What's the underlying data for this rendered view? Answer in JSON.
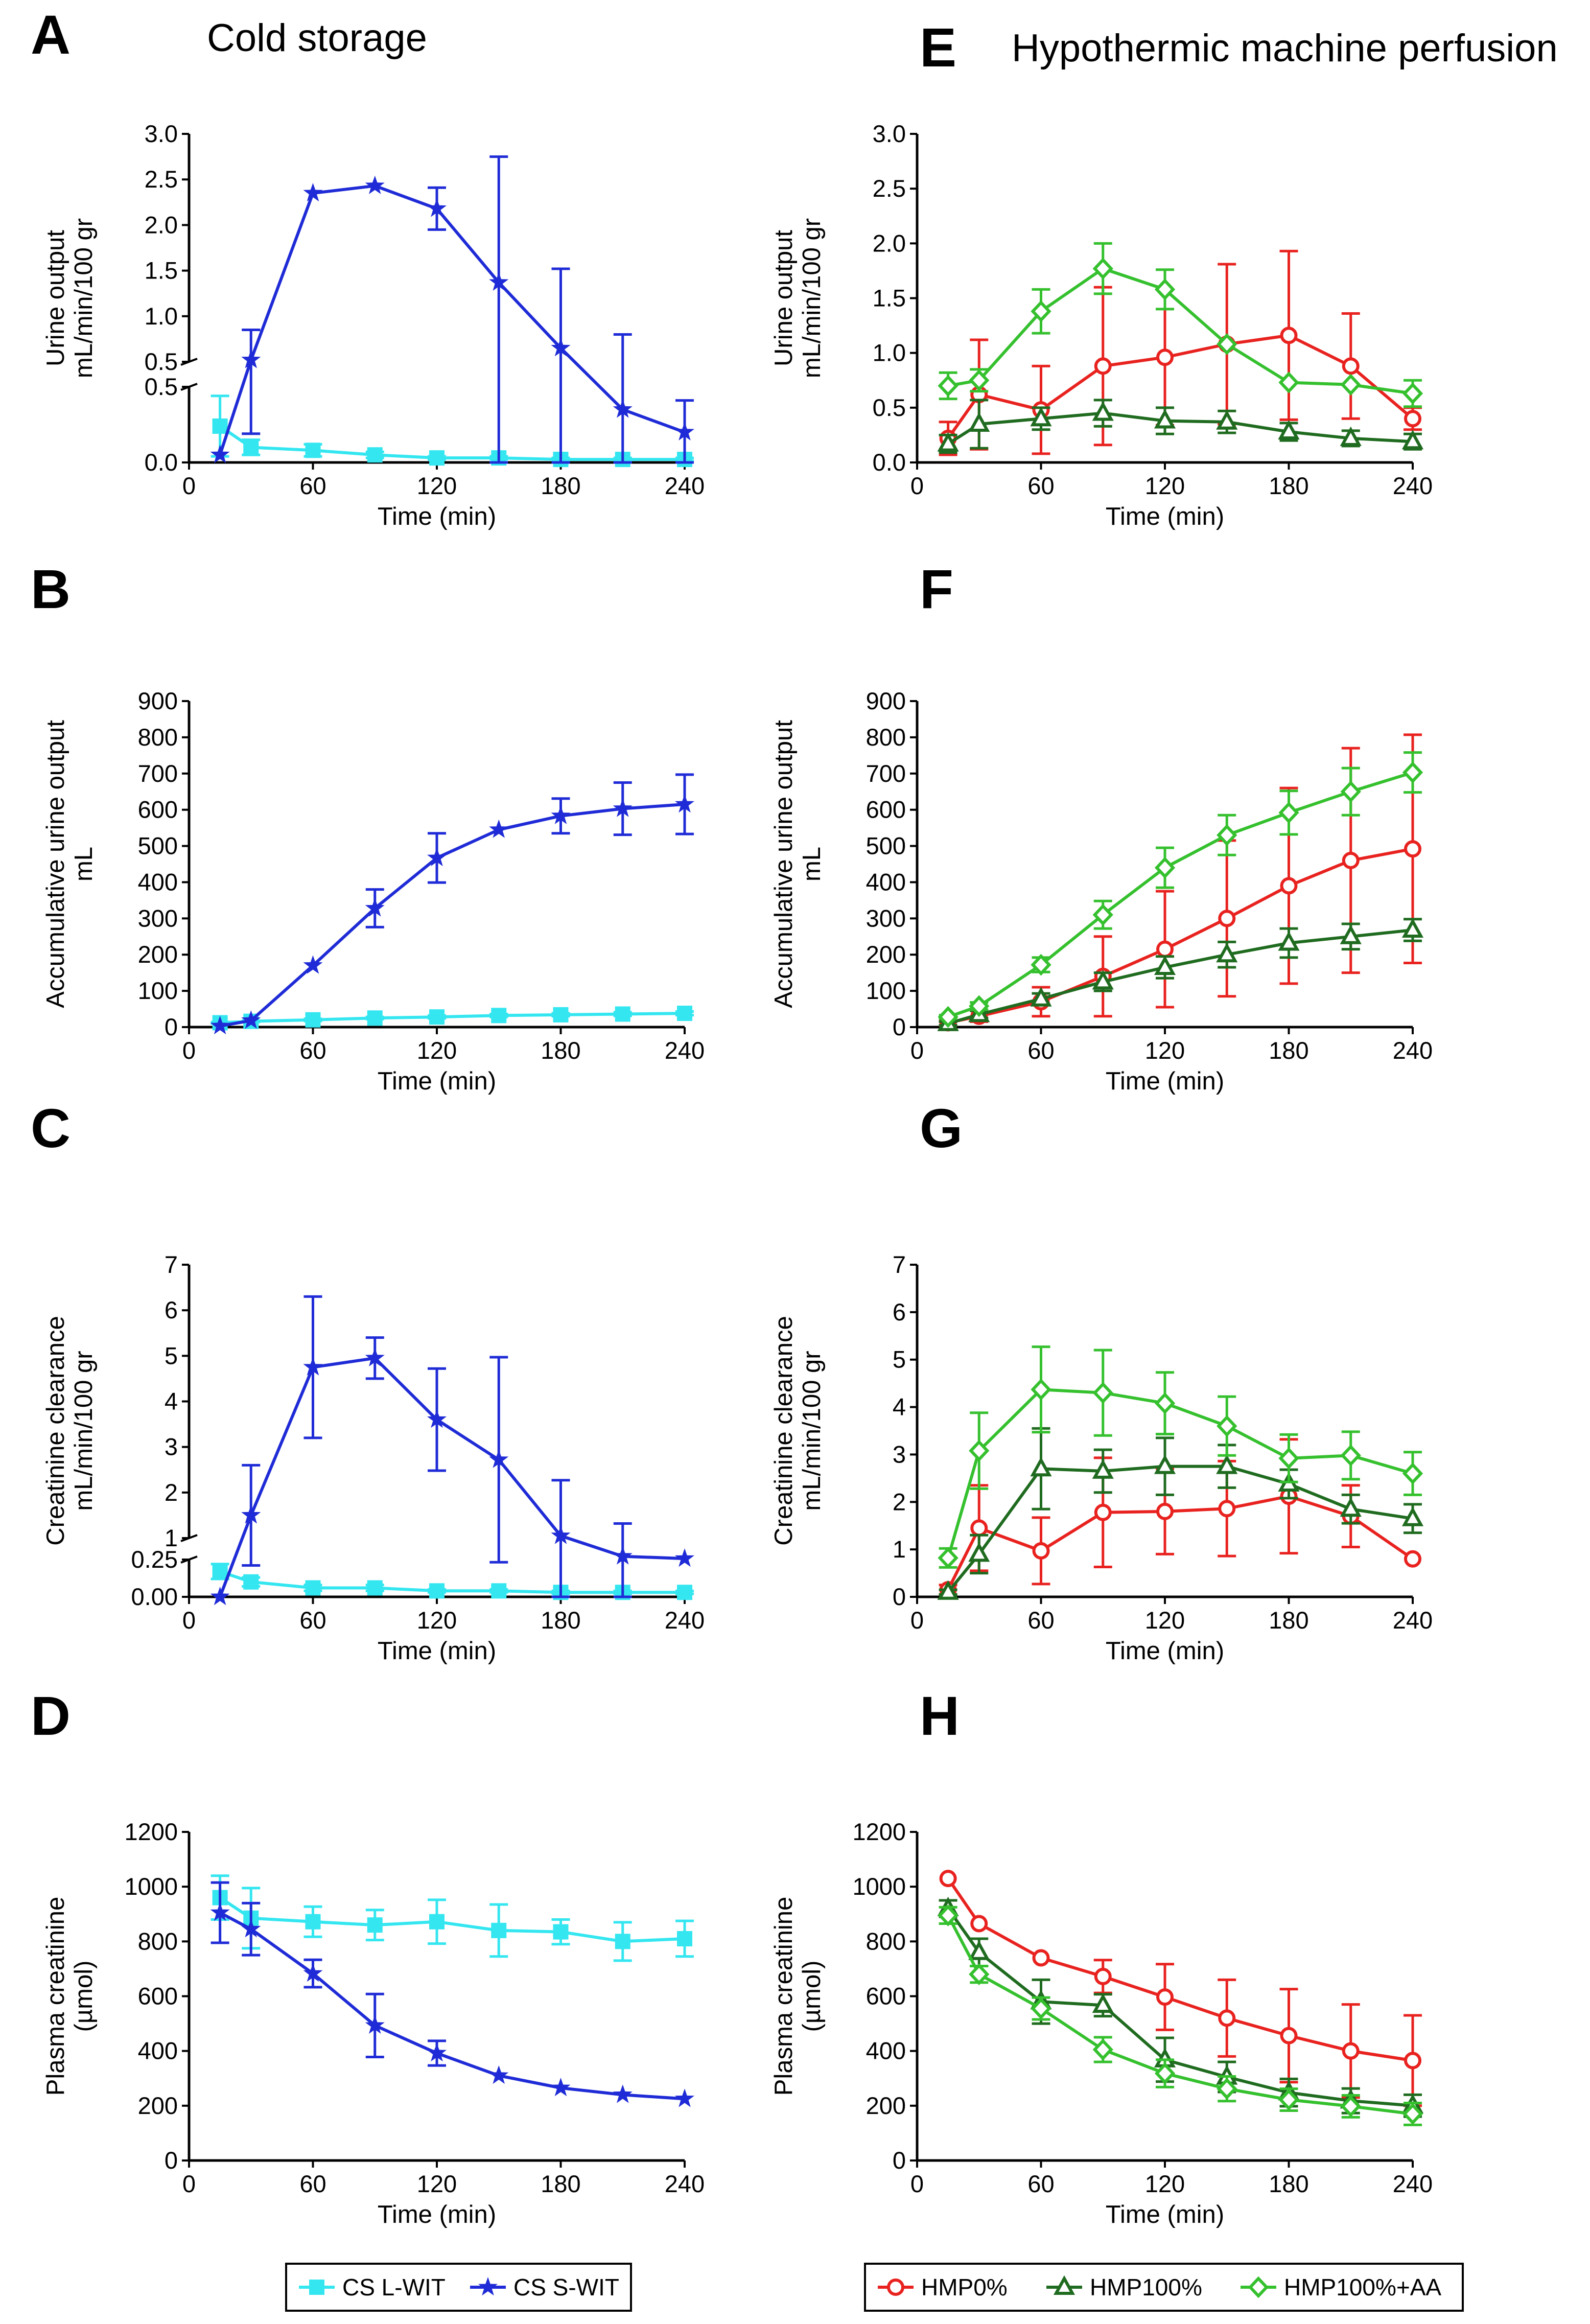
{
  "figure": {
    "heading_left": "Cold storage",
    "heading_right": "Hypothermic machine perfusion"
  },
  "colors": {
    "cs_lwit": "#33e6f0",
    "cs_swit": "#1f2bd6",
    "hmp0": "#e8221f",
    "hmp100": "#1f6b1f",
    "hmp100aa": "#35c02e",
    "axis": "#000000"
  },
  "legends": {
    "left": [
      {
        "label": "CS L-WIT",
        "color": "#33e6f0",
        "marker": "square"
      },
      {
        "label": "CS S-WIT",
        "color": "#1f2bd6",
        "marker": "star"
      }
    ],
    "right": [
      {
        "label": "HMP0%",
        "color": "#e8221f",
        "marker": "circle"
      },
      {
        "label": "HMP100%",
        "color": "#1f6b1f",
        "marker": "triangle"
      },
      {
        "label": "HMP100%+AA",
        "color": "#35c02e",
        "marker": "diamond"
      }
    ]
  },
  "chart_data": [
    {
      "id": "A",
      "type": "line",
      "letter": "A",
      "xlabel": "Time (min)",
      "ylabel": [
        "Urine output",
        "mL/min/100 gr"
      ],
      "xlim": [
        0,
        240
      ],
      "xticks": [
        0,
        60,
        120,
        180,
        240
      ],
      "ylim": [
        0,
        3.0
      ],
      "break": {
        "lower": [
          0,
          0.5
        ],
        "upper": [
          0.5,
          3.0
        ],
        "lower_ticks": [
          "0.0",
          "0.5"
        ],
        "upper_ticks": [
          "0.5",
          "1.0",
          "1.5",
          "2.0",
          "2.5",
          "3.0"
        ]
      },
      "series": [
        {
          "name": "CS L-WIT",
          "color": "#33e6f0",
          "marker": "square",
          "x": [
            15,
            30,
            60,
            90,
            120,
            150,
            180,
            210,
            240
          ],
          "y": [
            0.24,
            0.1,
            0.08,
            0.05,
            0.03,
            0.03,
            0.02,
            0.02,
            0.02
          ],
          "err": [
            0.2,
            0.05,
            0.04,
            0.02,
            0.01,
            0.01,
            0.01,
            0.01,
            0.01
          ]
        },
        {
          "name": "CS S-WIT",
          "color": "#1f2bd6",
          "marker": "star",
          "x": [
            15,
            30,
            60,
            90,
            120,
            150,
            180,
            210,
            240
          ],
          "y": [
            0.05,
            0.52,
            2.35,
            2.43,
            2.18,
            1.37,
            0.65,
            0.35,
            0.2
          ],
          "err": [
            0.0,
            0.33,
            0.0,
            0.0,
            0.23,
            1.38,
            0.87,
            0.45,
            0.21
          ]
        }
      ]
    },
    {
      "id": "B",
      "type": "line",
      "letter": "B",
      "xlabel": "Time (min)",
      "ylabel": [
        "Accumulative urine output",
        "mL"
      ],
      "xlim": [
        0,
        240
      ],
      "xticks": [
        0,
        60,
        120,
        180,
        240
      ],
      "ylim": [
        0,
        900
      ],
      "yticks": [
        0,
        100,
        200,
        300,
        400,
        500,
        600,
        700,
        800,
        900
      ],
      "series": [
        {
          "name": "CS L-WIT",
          "color": "#33e6f0",
          "marker": "square",
          "x": [
            15,
            30,
            60,
            90,
            120,
            150,
            180,
            210,
            240
          ],
          "y": [
            12,
            16,
            20,
            25,
            28,
            32,
            34,
            36,
            38
          ],
          "err": [
            2,
            2,
            3,
            3,
            4,
            4,
            4,
            5,
            5
          ]
        },
        {
          "name": "CS S-WIT",
          "color": "#1f2bd6",
          "marker": "star",
          "x": [
            15,
            30,
            60,
            90,
            120,
            150,
            180,
            210,
            240
          ],
          "y": [
            3,
            18,
            170,
            328,
            467,
            545,
            583,
            603,
            615
          ],
          "err": [
            0,
            0,
            0,
            52,
            68,
            0,
            48,
            72,
            82
          ]
        }
      ]
    },
    {
      "id": "C",
      "type": "line",
      "letter": "C",
      "xlabel": "Time (min)",
      "ylabel": [
        "Creatinine clearance",
        "mL/min/100 gr"
      ],
      "xlim": [
        0,
        240
      ],
      "xticks": [
        0,
        60,
        120,
        180,
        240
      ],
      "ylim": [
        0,
        7
      ],
      "break": {
        "lower": [
          0,
          0.25
        ],
        "upper": [
          1,
          7
        ],
        "lower_ticks": [
          "0.00",
          "0.25"
        ],
        "upper_ticks": [
          "1",
          "2",
          "3",
          "4",
          "5",
          "6",
          "7"
        ]
      },
      "series": [
        {
          "name": "CS L-WIT",
          "color": "#33e6f0",
          "marker": "square",
          "x": [
            15,
            30,
            60,
            90,
            120,
            150,
            180,
            210,
            240
          ],
          "y": [
            0.17,
            0.1,
            0.06,
            0.06,
            0.04,
            0.04,
            0.03,
            0.03,
            0.03
          ],
          "err": [
            0.05,
            0.03,
            0.02,
            0.02,
            0.01,
            0.01,
            0.01,
            0.01,
            0.01
          ]
        },
        {
          "name": "CS S-WIT",
          "color": "#1f2bd6",
          "marker": "star",
          "x": [
            15,
            30,
            60,
            90,
            120,
            150,
            180,
            210,
            240
          ],
          "y": [
            0.0,
            1.5,
            4.75,
            4.95,
            3.6,
            2.72,
            1.05,
            0.6,
            0.55
          ],
          "err": [
            0.0,
            1.1,
            1.55,
            0.45,
            1.12,
            2.25,
            1.22,
            0.72,
            0.0
          ]
        }
      ]
    },
    {
      "id": "D",
      "type": "line",
      "letter": "D",
      "xlabel": "Time (min)",
      "ylabel": [
        "Plasma creatinine",
        "(µmol)"
      ],
      "xlim": [
        0,
        240
      ],
      "xticks": [
        0,
        60,
        120,
        180,
        240
      ],
      "ylim": [
        0,
        1200
      ],
      "yticks": [
        0,
        200,
        400,
        600,
        800,
        1000,
        1200
      ],
      "series": [
        {
          "name": "CS L-WIT",
          "color": "#33e6f0",
          "marker": "square",
          "x": [
            15,
            30,
            60,
            90,
            120,
            150,
            180,
            210,
            240
          ],
          "y": [
            960,
            885,
            872,
            860,
            872,
            840,
            835,
            800,
            810
          ],
          "err": [
            80,
            110,
            55,
            55,
            80,
            95,
            45,
            70,
            65
          ]
        },
        {
          "name": "CS S-WIT",
          "color": "#1f2bd6",
          "marker": "star",
          "x": [
            15,
            30,
            60,
            90,
            120,
            150,
            180,
            210,
            240
          ],
          "y": [
            905,
            845,
            683,
            493,
            392,
            310,
            265,
            240,
            225
          ],
          "err": [
            110,
            95,
            50,
            115,
            45,
            0,
            0,
            0,
            0
          ]
        }
      ]
    },
    {
      "id": "E",
      "type": "line",
      "letter": "E",
      "xlabel": "Time (min)",
      "ylabel": [
        "Urine output",
        "mL/min/100 gr"
      ],
      "xlim": [
        0,
        240
      ],
      "xticks": [
        0,
        60,
        120,
        180,
        240
      ],
      "ylim": [
        0,
        3.0
      ],
      "yticks": [
        0,
        0.5,
        1.0,
        1.5,
        2.0,
        2.5,
        3.0
      ],
      "ytick_labels": [
        "0.0",
        "0.5",
        "1.0",
        "1.5",
        "2.0",
        "2.5",
        "3.0"
      ],
      "series": [
        {
          "name": "HMP0%",
          "color": "#e8221f",
          "marker": "circle",
          "x": [
            15,
            30,
            60,
            90,
            120,
            150,
            180,
            210,
            240
          ],
          "y": [
            0.22,
            0.62,
            0.48,
            0.88,
            0.96,
            1.08,
            1.16,
            0.88,
            0.4
          ],
          "err": [
            0.15,
            0.5,
            0.4,
            0.72,
            0.62,
            0.73,
            0.77,
            0.48,
            0.1
          ]
        },
        {
          "name": "HMP100%",
          "color": "#1f6b1f",
          "marker": "triangle",
          "x": [
            15,
            30,
            60,
            90,
            120,
            150,
            180,
            210,
            240
          ],
          "y": [
            0.17,
            0.35,
            0.4,
            0.45,
            0.38,
            0.37,
            0.28,
            0.22,
            0.19
          ],
          "err": [
            0.08,
            0.22,
            0.1,
            0.12,
            0.12,
            0.1,
            0.08,
            0.07,
            0.07
          ]
        },
        {
          "name": "HMP100%+AA",
          "color": "#35c02e",
          "marker": "diamond",
          "x": [
            15,
            30,
            60,
            90,
            120,
            150,
            180,
            210,
            240
          ],
          "y": [
            0.7,
            0.75,
            1.38,
            1.77,
            1.58,
            1.08,
            0.73,
            0.71,
            0.63
          ],
          "err": [
            0.12,
            0.1,
            0.2,
            0.23,
            0.18,
            0.0,
            0.0,
            0.0,
            0.12
          ]
        }
      ]
    },
    {
      "id": "F",
      "type": "line",
      "letter": "F",
      "xlabel": "Time (min)",
      "ylabel": [
        "Accumulative urine output",
        "mL"
      ],
      "xlim": [
        0,
        240
      ],
      "xticks": [
        0,
        60,
        120,
        180,
        240
      ],
      "ylim": [
        0,
        900
      ],
      "yticks": [
        0,
        100,
        200,
        300,
        400,
        500,
        600,
        700,
        800,
        900
      ],
      "series": [
        {
          "name": "HMP0%",
          "color": "#e8221f",
          "marker": "circle",
          "x": [
            15,
            30,
            60,
            90,
            120,
            150,
            180,
            210,
            240
          ],
          "y": [
            12,
            30,
            70,
            140,
            215,
            300,
            390,
            460,
            492
          ],
          "err": [
            8,
            15,
            40,
            110,
            160,
            215,
            270,
            310,
            315
          ]
        },
        {
          "name": "HMP100%",
          "color": "#1f6b1f",
          "marker": "triangle",
          "x": [
            15,
            30,
            60,
            90,
            120,
            150,
            180,
            210,
            240
          ],
          "y": [
            10,
            35,
            78,
            125,
            165,
            200,
            232,
            250,
            268
          ],
          "err": [
            5,
            10,
            15,
            25,
            30,
            35,
            40,
            35,
            30
          ]
        },
        {
          "name": "HMP100%+AA",
          "color": "#35c02e",
          "marker": "diamond",
          "x": [
            15,
            30,
            60,
            90,
            120,
            150,
            180,
            210,
            240
          ],
          "y": [
            28,
            58,
            172,
            310,
            440,
            530,
            592,
            650,
            703
          ],
          "err": [
            5,
            10,
            20,
            38,
            55,
            55,
            60,
            65,
            55
          ]
        }
      ]
    },
    {
      "id": "G",
      "type": "line",
      "letter": "G",
      "xlabel": "Time (min)",
      "ylabel": [
        "Creatinine clearance",
        "mL/min/100 gr"
      ],
      "xlim": [
        0,
        240
      ],
      "xticks": [
        0,
        60,
        120,
        180,
        240
      ],
      "ylim": [
        0,
        7
      ],
      "yticks": [
        0,
        1,
        2,
        3,
        4,
        5,
        6,
        7
      ],
      "series": [
        {
          "name": "HMP0%",
          "color": "#e8221f",
          "marker": "circle",
          "x": [
            15,
            30,
            60,
            90,
            120,
            150,
            180,
            210,
            240
          ],
          "y": [
            0.15,
            1.45,
            0.97,
            1.78,
            1.8,
            1.86,
            2.12,
            1.7,
            0.8
          ],
          "err": [
            0.1,
            0.9,
            0.7,
            1.15,
            0.9,
            1.0,
            1.2,
            0.65,
            0.0
          ]
        },
        {
          "name": "HMP100%",
          "color": "#1f6b1f",
          "marker": "triangle",
          "x": [
            15,
            30,
            60,
            90,
            120,
            150,
            180,
            210,
            240
          ],
          "y": [
            0.1,
            0.9,
            2.7,
            2.65,
            2.75,
            2.75,
            2.38,
            1.85,
            1.65
          ],
          "err": [
            0.05,
            0.4,
            0.85,
            0.45,
            0.6,
            0.45,
            0.3,
            0.3,
            0.3
          ]
        },
        {
          "name": "HMP100%+AA",
          "color": "#35c02e",
          "marker": "diamond",
          "x": [
            15,
            30,
            60,
            90,
            120,
            150,
            180,
            210,
            240
          ],
          "y": [
            0.82,
            3.08,
            4.37,
            4.3,
            4.08,
            3.6,
            2.92,
            2.98,
            2.6
          ],
          "err": [
            0.2,
            0.8,
            0.9,
            0.9,
            0.65,
            0.62,
            0.5,
            0.5,
            0.45
          ]
        }
      ]
    },
    {
      "id": "H",
      "type": "line",
      "letter": "H",
      "xlabel": "Time (min)",
      "ylabel": [
        "Plasma creatinine",
        "(µmol)"
      ],
      "xlim": [
        0,
        240
      ],
      "xticks": [
        0,
        60,
        120,
        180,
        240
      ],
      "ylim": [
        0,
        1200
      ],
      "yticks": [
        0,
        200,
        400,
        600,
        800,
        1000,
        1200
      ],
      "series": [
        {
          "name": "HMP0%",
          "color": "#e8221f",
          "marker": "circle",
          "x": [
            15,
            30,
            60,
            90,
            120,
            150,
            180,
            210,
            240
          ],
          "y": [
            1030,
            865,
            740,
            672,
            597,
            520,
            456,
            400,
            365
          ],
          "err": [
            0,
            0,
            0,
            60,
            120,
            140,
            170,
            170,
            165
          ]
        },
        {
          "name": "HMP100%",
          "color": "#1f6b1f",
          "marker": "triangle",
          "x": [
            15,
            30,
            60,
            90,
            120,
            150,
            180,
            210,
            240
          ],
          "y": [
            920,
            760,
            580,
            567,
            368,
            305,
            248,
            218,
            200
          ],
          "err": [
            30,
            50,
            80,
            40,
            80,
            55,
            50,
            45,
            40
          ]
        },
        {
          "name": "HMP100%+AA",
          "color": "#35c02e",
          "marker": "diamond",
          "x": [
            15,
            30,
            60,
            90,
            120,
            150,
            180,
            210,
            240
          ],
          "y": [
            895,
            680,
            555,
            405,
            318,
            262,
            222,
            198,
            170
          ],
          "err": [
            30,
            30,
            40,
            45,
            50,
            45,
            40,
            40,
            40
          ]
        }
      ]
    }
  ]
}
